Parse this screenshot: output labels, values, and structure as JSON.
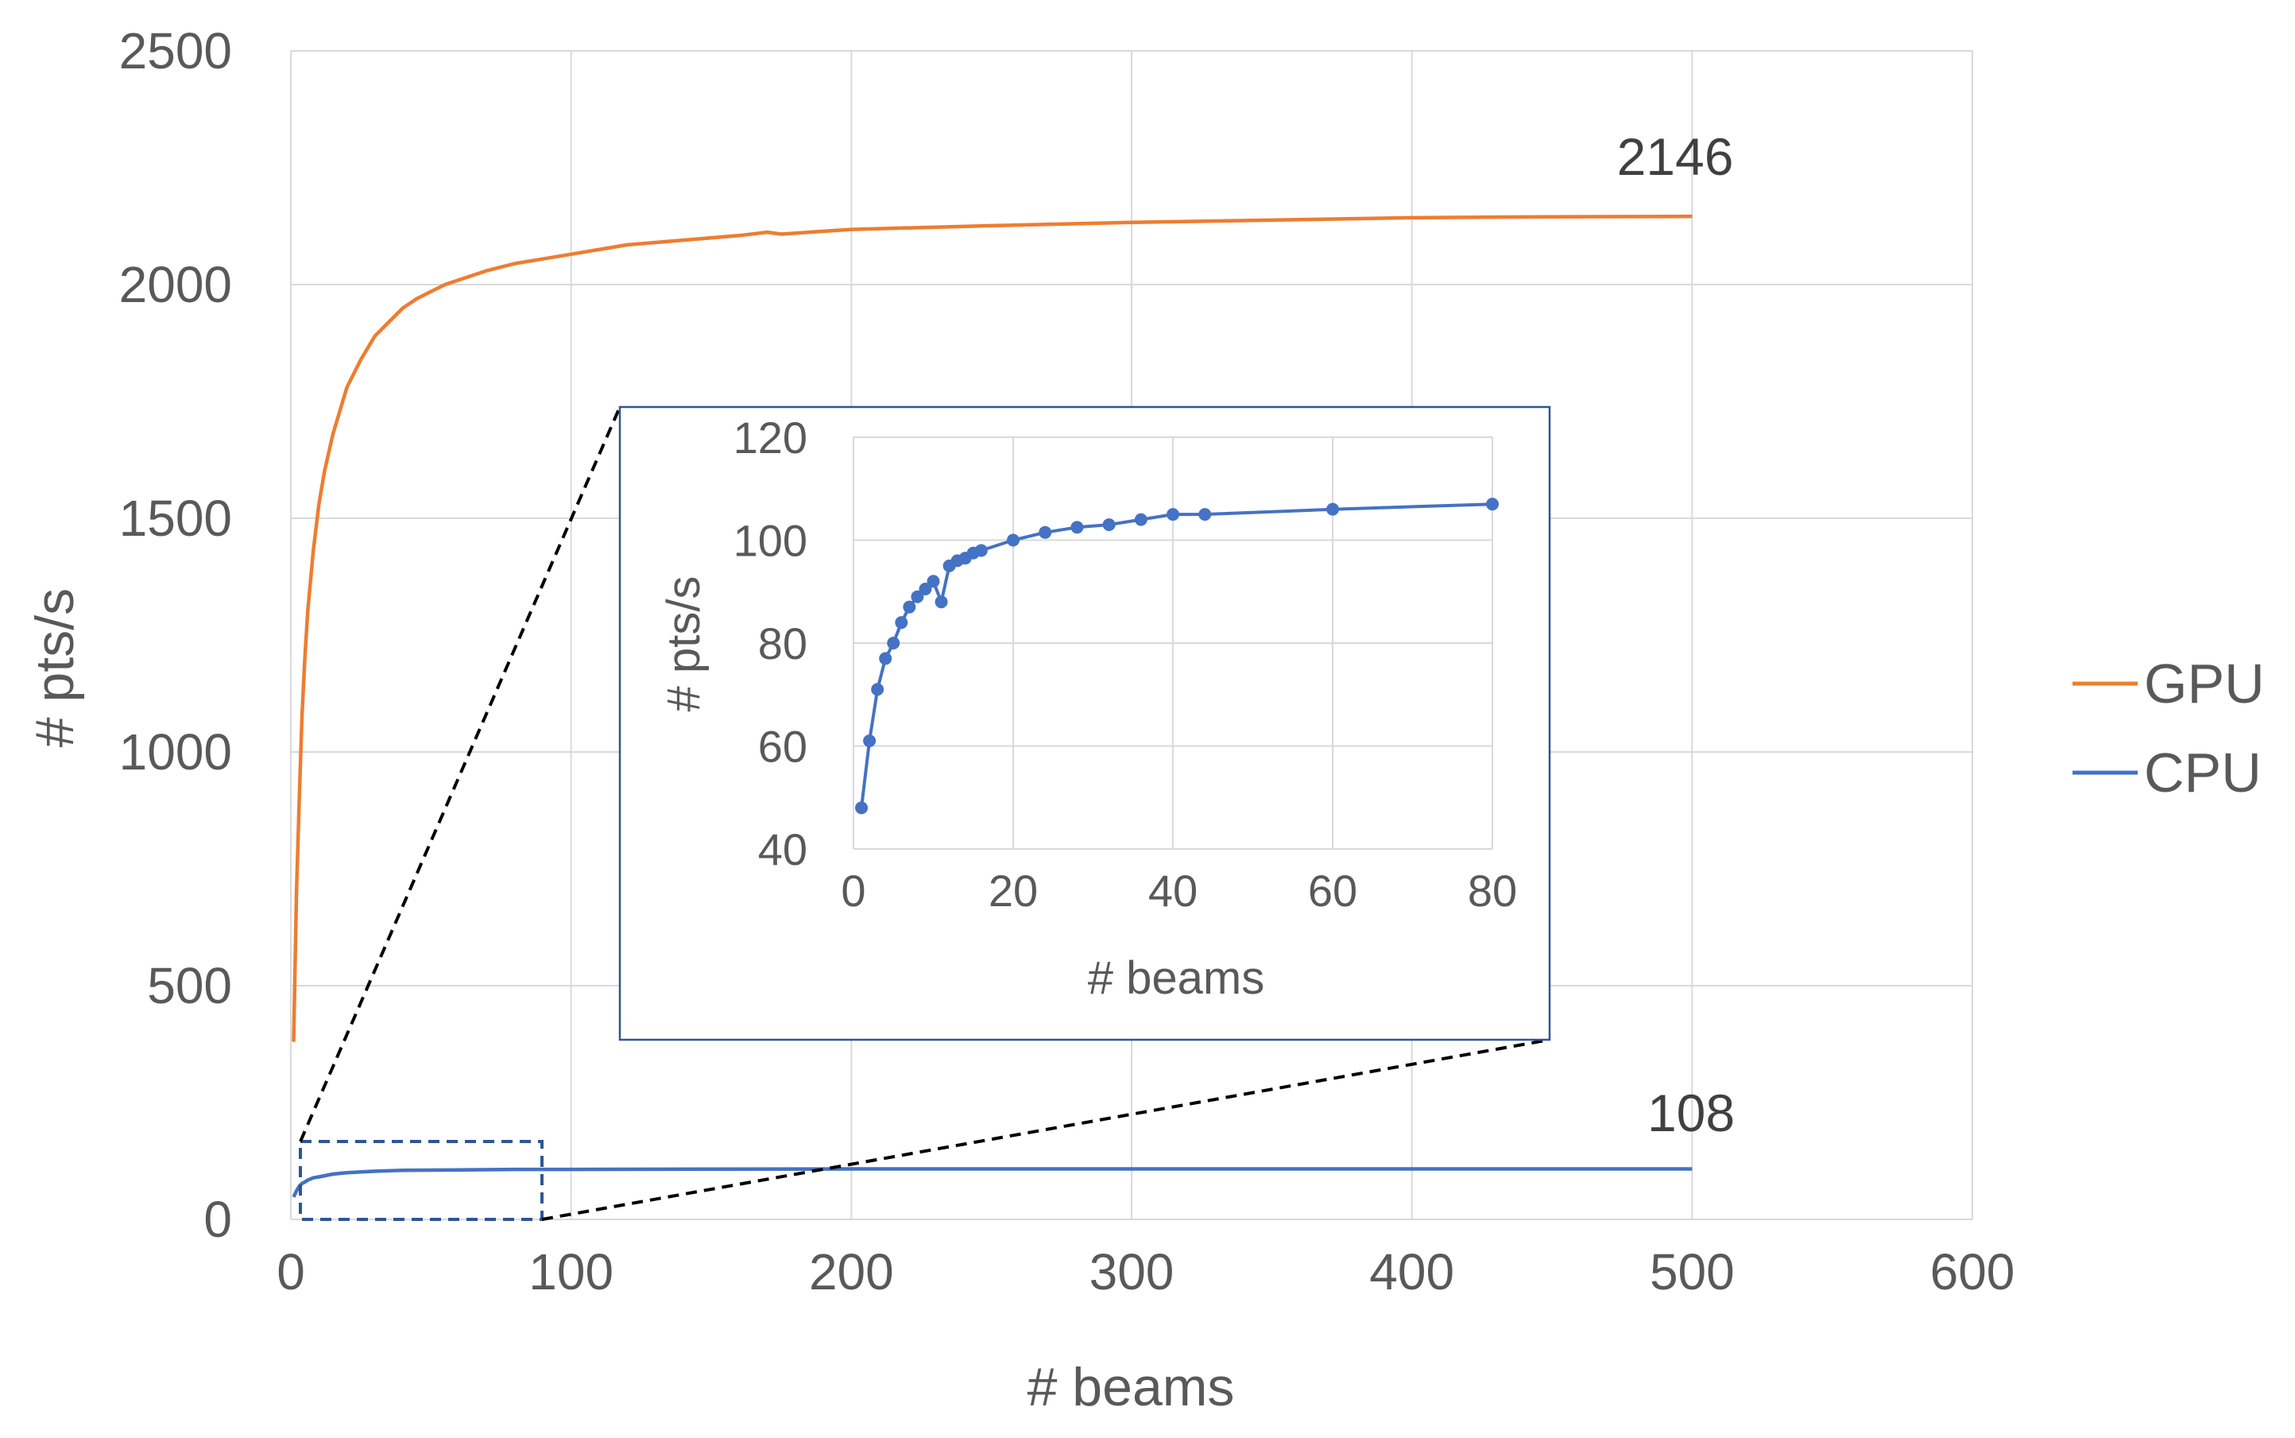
{
  "chart_data": [
    {
      "type": "line",
      "xlabel": "# beams",
      "ylabel": "# pts/s",
      "xlim": [
        0,
        600
      ],
      "ylim": [
        0,
        2500
      ],
      "xticks": [
        0,
        100,
        200,
        300,
        400,
        500,
        600
      ],
      "yticks": [
        0,
        500,
        1000,
        1500,
        2000,
        2500
      ],
      "grid": true,
      "legend": "right",
      "series": [
        {
          "name": "GPU",
          "color": "#ED7D31",
          "x": [
            1,
            2,
            3,
            4,
            5,
            6,
            8,
            10,
            12,
            15,
            18,
            20,
            25,
            30,
            35,
            40,
            45,
            50,
            55,
            60,
            70,
            80,
            90,
            100,
            110,
            120,
            140,
            160,
            170,
            175,
            200,
            250,
            300,
            350,
            400,
            450,
            500
          ],
          "y": [
            380,
            700,
            900,
            1080,
            1200,
            1300,
            1430,
            1530,
            1600,
            1680,
            1740,
            1780,
            1840,
            1890,
            1920,
            1950,
            1970,
            1985,
            2000,
            2010,
            2030,
            2045,
            2055,
            2065,
            2075,
            2085,
            2095,
            2105,
            2112,
            2108,
            2118,
            2126,
            2133,
            2138,
            2143,
            2145,
            2146
          ],
          "end_label": "2146"
        },
        {
          "name": "CPU",
          "color": "#4472C4",
          "x": [
            1,
            2,
            3,
            4,
            5,
            6,
            8,
            10,
            15,
            20,
            30,
            40,
            60,
            80,
            100,
            200,
            300,
            400,
            500
          ],
          "y": [
            48,
            61,
            71,
            77,
            80,
            84,
            89,
            91,
            97,
            100,
            103,
            105,
            106,
            107,
            107,
            108,
            108,
            108,
            108
          ],
          "end_label": "108"
        }
      ]
    },
    {
      "type": "scatter",
      "xlabel": "# beams",
      "ylabel": "# pts/s",
      "xlim": [
        0,
        80
      ],
      "ylim": [
        40,
        120
      ],
      "xticks": [
        0,
        20,
        40,
        60,
        80
      ],
      "yticks": [
        40,
        60,
        80,
        100,
        120
      ],
      "grid": true,
      "series": [
        {
          "name": "CPU",
          "color": "#4472C4",
          "x": [
            1,
            2,
            3,
            4,
            5,
            6,
            7,
            8,
            9,
            10,
            11,
            12,
            13,
            14,
            15,
            16,
            20,
            24,
            28,
            32,
            36,
            40,
            44,
            60,
            80
          ],
          "y": [
            48,
            61,
            71,
            77,
            80,
            84,
            87,
            89,
            90.5,
            92,
            88,
            95,
            96,
            96.5,
            97.5,
            98,
            100,
            101.5,
            102.5,
            103,
            104,
            105,
            105,
            106,
            107
          ]
        }
      ]
    }
  ]
}
